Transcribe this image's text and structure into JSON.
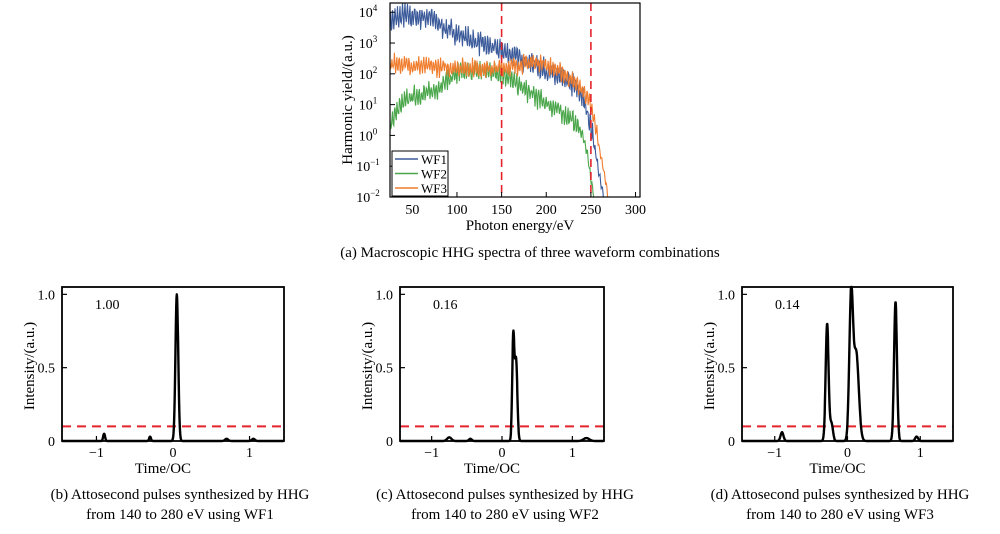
{
  "chart_data": [
    {
      "type": "line",
      "panel": "a",
      "xlabel": "Photon energy/eV",
      "ylabel": "Harmonic yield/(a.u.)",
      "xlim": [
        25,
        305
      ],
      "ylog": true,
      "ylim_exp": [
        -2,
        4.3
      ],
      "x_ticks": [
        50,
        100,
        150,
        200,
        250,
        300
      ],
      "y_ticks": [
        {
          "base": "10",
          "exp": "4"
        },
        {
          "base": "10",
          "exp": "3"
        },
        {
          "base": "10",
          "exp": "2"
        },
        {
          "base": "10",
          "exp": "1"
        },
        {
          "base": "10",
          "exp": "0"
        },
        {
          "base": "10",
          "exp": "-1"
        },
        {
          "base": "10",
          "exp": "-2"
        }
      ],
      "vlines": [
        150,
        250
      ],
      "legend_position": "bottom-left",
      "series": [
        {
          "name": "WF1",
          "color": "#3b5a9a",
          "x": [
            25,
            40,
            55,
            70,
            85,
            100,
            115,
            130,
            150,
            170,
            190,
            210,
            230,
            240,
            245,
            250,
            255,
            260,
            265
          ],
          "log10_y": [
            3.7,
            3.9,
            3.85,
            3.85,
            3.5,
            3.3,
            3.1,
            2.95,
            2.75,
            2.5,
            2.25,
            1.95,
            1.65,
            1.3,
            0.9,
            0.3,
            -0.5,
            -1.4,
            -2.1
          ],
          "noise": 0.28
        },
        {
          "name": "WF2",
          "color": "#4aa64a",
          "x": [
            25,
            35,
            45,
            55,
            65,
            75,
            85,
            100,
            120,
            140,
            150,
            165,
            180,
            200,
            215,
            230,
            240,
            246,
            250,
            254
          ],
          "log10_y": [
            0.4,
            0.9,
            1.2,
            1.3,
            1.35,
            1.45,
            1.7,
            2.0,
            2.1,
            2.1,
            2.05,
            1.7,
            1.4,
            1.05,
            0.8,
            0.5,
            0.1,
            -0.6,
            -1.4,
            -2.1
          ],
          "noise": 0.25
        },
        {
          "name": "WF3",
          "color": "#f07d2e",
          "x": [
            25,
            40,
            60,
            80,
            100,
            120,
            140,
            150,
            165,
            180,
            190,
            200,
            210,
            220,
            235,
            245,
            250,
            255,
            260,
            266,
            270
          ],
          "log10_y": [
            2.35,
            2.3,
            2.25,
            2.2,
            2.2,
            2.2,
            2.15,
            2.2,
            2.25,
            2.35,
            2.4,
            2.3,
            2.15,
            2.0,
            1.65,
            1.3,
            0.9,
            0.3,
            -0.5,
            -1.4,
            -2.1
          ],
          "noise": 0.22
        }
      ]
    },
    {
      "type": "line",
      "panel": "b",
      "ratio": "1.00",
      "xlabel": "Time/OC",
      "ylabel": "Intensity/(a.u.)",
      "xlim": [
        -1.45,
        1.45
      ],
      "ylim": [
        0,
        1.05
      ],
      "x_ticks": [
        "-1",
        "0",
        "1"
      ],
      "x_tick_values": [
        -1,
        0,
        1
      ],
      "y_ticks": [
        "0",
        "0.5",
        "1.0"
      ],
      "y_tick_values": [
        0,
        0.5,
        1.0
      ],
      "threshold": 0.1,
      "peaks": [
        {
          "t": 0.05,
          "a": 1.0,
          "w": 0.018
        },
        {
          "t": -0.9,
          "a": 0.05,
          "w": 0.012
        },
        {
          "t": -0.3,
          "a": 0.03,
          "w": 0.012
        },
        {
          "t": 0.7,
          "a": 0.015,
          "w": 0.02
        },
        {
          "t": 1.05,
          "a": 0.015,
          "w": 0.02
        }
      ]
    },
    {
      "type": "line",
      "panel": "c",
      "ratio": "0.16",
      "xlabel": "Time/OC",
      "ylabel": "Intensity/(a.u.)",
      "xlim": [
        -1.45,
        1.45
      ],
      "ylim": [
        0,
        1.05
      ],
      "x_ticks": [
        "-1",
        "0",
        "1"
      ],
      "x_tick_values": [
        -1,
        0,
        1
      ],
      "y_ticks": [
        "0",
        "0.5",
        "1.0"
      ],
      "y_tick_values": [
        0,
        0.5,
        1.0
      ],
      "threshold": 0.1,
      "peaks": [
        {
          "t": 0.16,
          "a": 0.7,
          "w": 0.015
        },
        {
          "t": 0.2,
          "a": 0.55,
          "w": 0.018
        },
        {
          "t": -0.75,
          "a": 0.025,
          "w": 0.03
        },
        {
          "t": -0.45,
          "a": 0.015,
          "w": 0.02
        },
        {
          "t": 1.2,
          "a": 0.02,
          "w": 0.04
        }
      ]
    },
    {
      "type": "line",
      "panel": "d",
      "ratio": "0.14",
      "xlabel": "Time/OC",
      "ylabel": "Intensity/(a.u.)",
      "xlim": [
        -1.45,
        1.45
      ],
      "ylim": [
        0,
        1.05
      ],
      "x_ticks": [
        "-1",
        "0",
        "1"
      ],
      "x_tick_values": [
        -1,
        0,
        1
      ],
      "y_ticks": [
        "0",
        "0.5",
        "1.0"
      ],
      "y_tick_values": [
        0,
        0.5,
        1.0
      ],
      "threshold": 0.1,
      "peaks": [
        {
          "t": -0.28,
          "a": 0.8,
          "w": 0.02
        },
        {
          "t": -0.22,
          "a": 0.12,
          "w": 0.02
        },
        {
          "t": 0.05,
          "a": 0.98,
          "w": 0.025
        },
        {
          "t": 0.12,
          "a": 0.6,
          "w": 0.035
        },
        {
          "t": 0.66,
          "a": 0.95,
          "w": 0.02
        },
        {
          "t": -0.9,
          "a": 0.06,
          "w": 0.02
        },
        {
          "t": 0.95,
          "a": 0.03,
          "w": 0.02
        }
      ]
    }
  ],
  "captions": {
    "a": "(a) Macroscopic HHG spectra of three waveform combinations",
    "b": [
      "(b) Attosecond pulses synthesized by HHG",
      "from 140 to 280 eV using WF1"
    ],
    "c": [
      "(c) Attosecond pulses synthesized by HHG",
      "from 140 to 280 eV using WF2"
    ],
    "d": [
      "(d) Attosecond pulses synthesized by HHG",
      "from 140 to 280 eV using WF3"
    ]
  }
}
